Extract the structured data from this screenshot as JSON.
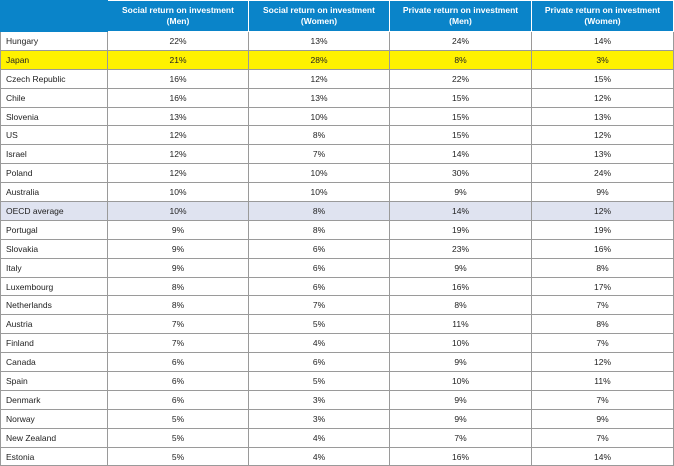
{
  "columns": [
    "",
    "Social return on investment (Men)",
    "Social return on investment (Women)",
    "Private return on investment (Men)",
    "Private return on investment (Women)"
  ],
  "rows": [
    {
      "country": "Hungary",
      "values": [
        "22%",
        "13%",
        "24%",
        "14%"
      ],
      "highlight": ""
    },
    {
      "country": "Japan",
      "values": [
        "21%",
        "28%",
        "8%",
        "3%"
      ],
      "highlight": "japan"
    },
    {
      "country": "Czech Republic",
      "values": [
        "16%",
        "12%",
        "22%",
        "15%"
      ],
      "highlight": ""
    },
    {
      "country": "Chile",
      "values": [
        "16%",
        "13%",
        "15%",
        "12%"
      ],
      "highlight": ""
    },
    {
      "country": "Slovenia",
      "values": [
        "13%",
        "10%",
        "15%",
        "13%"
      ],
      "highlight": ""
    },
    {
      "country": "US",
      "values": [
        "12%",
        "8%",
        "15%",
        "12%"
      ],
      "highlight": ""
    },
    {
      "country": "Israel",
      "values": [
        "12%",
        "7%",
        "14%",
        "13%"
      ],
      "highlight": ""
    },
    {
      "country": "Poland",
      "values": [
        "12%",
        "10%",
        "30%",
        "24%"
      ],
      "highlight": ""
    },
    {
      "country": "Australia",
      "values": [
        "10%",
        "10%",
        "9%",
        "9%"
      ],
      "highlight": ""
    },
    {
      "country": "OECD average",
      "values": [
        "10%",
        "8%",
        "14%",
        "12%"
      ],
      "highlight": "oecd"
    },
    {
      "country": "Portugal",
      "values": [
        "9%",
        "8%",
        "19%",
        "19%"
      ],
      "highlight": ""
    },
    {
      "country": "Slovakia",
      "values": [
        "9%",
        "6%",
        "23%",
        "16%"
      ],
      "highlight": ""
    },
    {
      "country": "Italy",
      "values": [
        "9%",
        "6%",
        "9%",
        "8%"
      ],
      "highlight": ""
    },
    {
      "country": "Luxembourg",
      "values": [
        "8%",
        "6%",
        "16%",
        "17%"
      ],
      "highlight": ""
    },
    {
      "country": "Netherlands",
      "values": [
        "8%",
        "7%",
        "8%",
        "7%"
      ],
      "highlight": ""
    },
    {
      "country": "Austria",
      "values": [
        "7%",
        "5%",
        "11%",
        "8%"
      ],
      "highlight": ""
    },
    {
      "country": "Finland",
      "values": [
        "7%",
        "4%",
        "10%",
        "7%"
      ],
      "highlight": ""
    },
    {
      "country": "Canada",
      "values": [
        "6%",
        "6%",
        "9%",
        "12%"
      ],
      "highlight": ""
    },
    {
      "country": "Spain",
      "values": [
        "6%",
        "5%",
        "10%",
        "11%"
      ],
      "highlight": ""
    },
    {
      "country": "Denmark",
      "values": [
        "6%",
        "3%",
        "9%",
        "7%"
      ],
      "highlight": ""
    },
    {
      "country": "Norway",
      "values": [
        "5%",
        "3%",
        "9%",
        "9%"
      ],
      "highlight": ""
    },
    {
      "country": "New Zealand",
      "values": [
        "5%",
        "4%",
        "7%",
        "7%"
      ],
      "highlight": ""
    },
    {
      "country": "Estonia",
      "values": [
        "5%",
        "4%",
        "16%",
        "14%"
      ],
      "highlight": ""
    }
  ],
  "colors": {
    "header_bg": "#0a84c9",
    "japan_highlight": "#fff200",
    "oecd_highlight": "#dfe3f0"
  }
}
